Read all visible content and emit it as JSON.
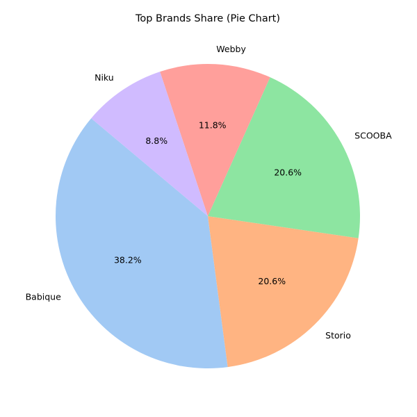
{
  "chart_data": {
    "type": "pie",
    "title": "Top Brands Share (Pie Chart)",
    "start_angle_deg": 140,
    "direction": "counterclockwise",
    "slices": [
      {
        "label": "Babique",
        "value": 38.2,
        "pct_text": "38.2%",
        "color": "#a1c9f4"
      },
      {
        "label": "Storio",
        "value": 20.6,
        "pct_text": "20.6%",
        "color": "#ffb482"
      },
      {
        "label": "SCOOBA",
        "value": 20.6,
        "pct_text": "20.6%",
        "color": "#8de5a1"
      },
      {
        "label": "Webby",
        "value": 11.8,
        "pct_text": "11.8%",
        "color": "#ff9f9b"
      },
      {
        "label": "Niku",
        "value": 8.8,
        "pct_text": "8.8%",
        "color": "#d0bbff"
      }
    ]
  }
}
